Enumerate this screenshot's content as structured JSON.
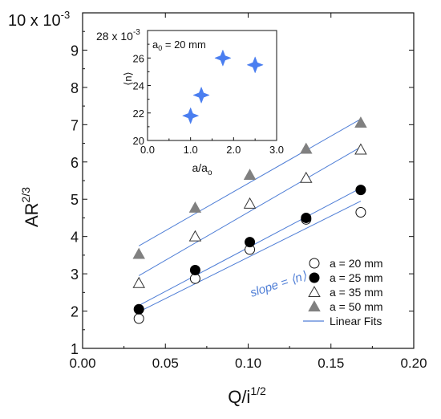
{
  "chart_data": [
    {
      "type": "scatter",
      "xlabel": "Q/i",
      "xlabel_sup": "1/2",
      "ylabel": "AR",
      "ylabel_sup": "2/3",
      "y_multiplier": "10 x 10",
      "y_multiplier_sup": "-3",
      "xlim": [
        0.0,
        0.2
      ],
      "ylim": [
        1,
        10
      ],
      "x_ticks": [
        "0.00",
        "0.05",
        "0.10",
        "0.15",
        "0.20"
      ],
      "y_ticks": [
        "1",
        "2",
        "3",
        "4",
        "5",
        "6",
        "7",
        "8",
        "9"
      ],
      "grid": false,
      "legend_position": "bottom-right",
      "annotation": "slope = ⟨n⟩",
      "series": [
        {
          "name": "a = 20 mm",
          "marker": "circle-open",
          "color": "#111111",
          "x": [
            0.034,
            0.068,
            0.101,
            0.135,
            0.168
          ],
          "y": [
            1.8,
            2.87,
            3.65,
            4.46,
            4.65
          ]
        },
        {
          "name": "a = 25 mm",
          "marker": "circle-filled",
          "color": "#000000",
          "x": [
            0.034,
            0.068,
            0.101,
            0.135,
            0.168
          ],
          "y": [
            2.05,
            3.1,
            3.85,
            4.5,
            5.25
          ]
        },
        {
          "name": "a = 35 mm",
          "marker": "triangle-open",
          "color": "#333333",
          "x": [
            0.034,
            0.068,
            0.101,
            0.135,
            0.168
          ],
          "y": [
            2.75,
            4.0,
            4.88,
            5.57,
            6.33
          ]
        },
        {
          "name": "a = 50 mm",
          "marker": "triangle-filled",
          "color": "#808080",
          "x": [
            0.034,
            0.068,
            0.101,
            0.135,
            0.168
          ],
          "y": [
            3.53,
            4.77,
            5.65,
            6.35,
            7.05
          ]
        }
      ],
      "fits": {
        "name": "Linear Fits",
        "color": "#4f7ed6",
        "lines": [
          {
            "x": [
              0.034,
              0.168
            ],
            "y": [
              1.98,
              4.95
            ]
          },
          {
            "x": [
              0.034,
              0.168
            ],
            "y": [
              2.15,
              5.3
            ]
          },
          {
            "x": [
              0.034,
              0.168
            ],
            "y": [
              2.95,
              6.4
            ]
          },
          {
            "x": [
              0.034,
              0.168
            ],
            "y": [
              3.75,
              7.15
            ]
          }
        ]
      }
    },
    {
      "type": "scatter",
      "xlabel": "a/a",
      "xlabel_sub": "o",
      "ylabel": "⟨n⟩",
      "y_multiplier": "28 x 10",
      "y_multiplier_sup": "-3",
      "xlim": [
        0.0,
        3.0
      ],
      "ylim": [
        20,
        28
      ],
      "x_ticks": [
        "0.0",
        "1.0",
        "2.0",
        "3.0"
      ],
      "y_ticks": [
        "20",
        "22",
        "24",
        "26"
      ],
      "annotation_main": "a",
      "annotation_sub": "0",
      "annotation_rest": " = 20 mm",
      "series": [
        {
          "marker": "star-4",
          "color": "#4a7ef0",
          "x": [
            1.0,
            1.25,
            1.75,
            2.5
          ],
          "y": [
            21.8,
            23.3,
            26.0,
            25.5
          ]
        }
      ]
    }
  ]
}
